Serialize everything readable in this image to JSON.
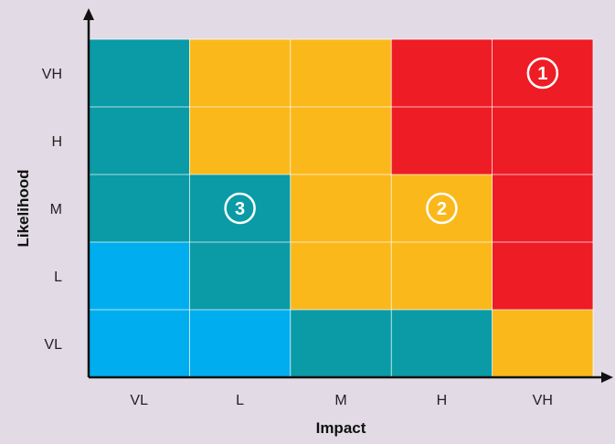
{
  "chart_data": {
    "type": "heatmap",
    "title": "",
    "xlabel": "Impact",
    "ylabel": "Likelihood",
    "x_categories": [
      "VL",
      "L",
      "M",
      "H",
      "VH"
    ],
    "y_categories": [
      "VL",
      "L",
      "M",
      "H",
      "VH"
    ],
    "grid": true,
    "colors": {
      "teal": "#0a9ba6",
      "blue": "#00aeef",
      "amber": "#fbb81b",
      "red": "#ee1c25",
      "background": "#e2dbe5",
      "axis": "#111111"
    },
    "cells": [
      {
        "x": "VL",
        "y": "VH",
        "color": "teal"
      },
      {
        "x": "VL",
        "y": "H",
        "color": "teal"
      },
      {
        "x": "VL",
        "y": "M",
        "color": "teal"
      },
      {
        "x": "VL",
        "y": "L",
        "color": "blue"
      },
      {
        "x": "VL",
        "y": "VL",
        "color": "blue"
      },
      {
        "x": "L",
        "y": "VH",
        "color": "amber"
      },
      {
        "x": "L",
        "y": "H",
        "color": "amber"
      },
      {
        "x": "L",
        "y": "M",
        "color": "teal"
      },
      {
        "x": "L",
        "y": "L",
        "color": "teal"
      },
      {
        "x": "L",
        "y": "VL",
        "color": "blue"
      },
      {
        "x": "M",
        "y": "VH",
        "color": "amber"
      },
      {
        "x": "M",
        "y": "H",
        "color": "amber"
      },
      {
        "x": "M",
        "y": "M",
        "color": "amber"
      },
      {
        "x": "M",
        "y": "L",
        "color": "amber"
      },
      {
        "x": "M",
        "y": "VL",
        "color": "teal"
      },
      {
        "x": "H",
        "y": "VH",
        "color": "red"
      },
      {
        "x": "H",
        "y": "H",
        "color": "red"
      },
      {
        "x": "H",
        "y": "M",
        "color": "amber"
      },
      {
        "x": "H",
        "y": "L",
        "color": "amber"
      },
      {
        "x": "H",
        "y": "VL",
        "color": "teal"
      },
      {
        "x": "VH",
        "y": "VH",
        "color": "red"
      },
      {
        "x": "VH",
        "y": "H",
        "color": "red"
      },
      {
        "x": "VH",
        "y": "M",
        "color": "red"
      },
      {
        "x": "VH",
        "y": "L",
        "color": "red"
      },
      {
        "x": "VH",
        "y": "VL",
        "color": "amber"
      }
    ],
    "annotations": [
      {
        "label": "1",
        "x": "VH",
        "y": "VH",
        "style": "circled",
        "color": "#ffffff"
      },
      {
        "label": "2",
        "x": "H",
        "y": "M",
        "style": "circled",
        "color": "#ffffff"
      },
      {
        "label": "3",
        "x": "L",
        "y": "M",
        "style": "circled",
        "color": "#ffffff"
      }
    ]
  }
}
